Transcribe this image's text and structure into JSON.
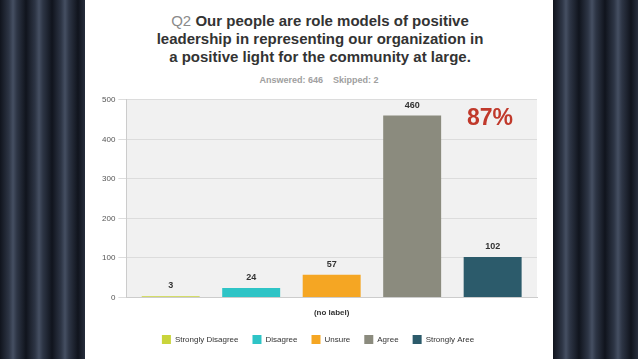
{
  "chart_data": {
    "type": "bar",
    "title": "Q2 Our people are role models of positive leadership in representing our organization in a positive light for the community at large.",
    "subtitle": "Answered: 646    Skipped: 2",
    "annotations": [
      "87%"
    ],
    "categories": [
      "(no label)"
    ],
    "series": [
      {
        "name": "Strongly Disagree",
        "color": "#c9d43a",
        "values": [
          3
        ]
      },
      {
        "name": "Disagree",
        "color": "#2ec4c6",
        "values": [
          24
        ]
      },
      {
        "name": "Unsure",
        "color": "#f5a623",
        "values": [
          57
        ]
      },
      {
        "name": "Agree",
        "color": "#8b8b7e",
        "values": [
          460
        ]
      },
      {
        "name": "Strongly Aree",
        "color": "#2c5b6b",
        "values": [
          102
        ]
      }
    ],
    "ylim": [
      0,
      500
    ],
    "yticks": [
      0,
      100,
      200,
      300,
      400,
      500
    ],
    "grid": true,
    "legend": "bottom",
    "data_labels": true
  }
}
